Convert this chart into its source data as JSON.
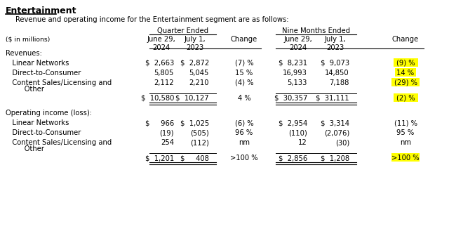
{
  "title": "Entertainment",
  "subtitle": "Revenue and operating income for the Entertainment segment are as follows:",
  "header_group1": "Quarter Ended",
  "header_group2": "Nine Months Ended",
  "col_headers": [
    "June 29,\n2024",
    "July 1,\n2023",
    "Change",
    "June 29,\n2024",
    "July 1,\n2023",
    "Change"
  ],
  "units_label": "($ in millions)",
  "sections": [
    {
      "section_label": "Revenues:",
      "rows": [
        {
          "label": "   Linear Networks",
          "q_2024": "$  2,663",
          "q_2023": "$  2,872",
          "q_change": "(7) %",
          "nm_2024": "$  8,231",
          "nm_2023": "$  9,073",
          "nm_change": "(9) %",
          "nm_change_highlight": true,
          "top_border": false,
          "double_border": false
        },
        {
          "label": "   Direct-to-Consumer",
          "q_2024": "5,805",
          "q_2023": "5,045",
          "q_change": "15 %",
          "nm_2024": "16,993",
          "nm_2023": "14,850",
          "nm_change": "14 %",
          "nm_change_highlight": true,
          "top_border": false,
          "double_border": false
        },
        {
          "label": "   Content Sales/Licensing and\n      Other",
          "q_2024": "2,112",
          "q_2023": "2,210",
          "q_change": "(4) %",
          "nm_2024": "5,133",
          "nm_2023": "7,188",
          "nm_change": "(29) %",
          "nm_change_highlight": true,
          "top_border": false,
          "double_border": false,
          "two_line": true
        },
        {
          "label": "",
          "q_2024": "$  10,580",
          "q_2023": "$  10,127",
          "q_change": "4 %",
          "nm_2024": "$  30,357",
          "nm_2023": "$  31,111",
          "nm_change": "(2) %",
          "nm_change_highlight": true,
          "top_border": true,
          "double_border": true
        }
      ]
    },
    {
      "section_label": "Operating income (loss):",
      "rows": [
        {
          "label": "   Linear Networks",
          "q_2024": "$     966",
          "q_2023": "$  1,025",
          "q_change": "(6) %",
          "nm_2024": "$  2,954",
          "nm_2023": "$  3,314",
          "nm_change": "(11) %",
          "nm_change_highlight": false,
          "top_border": false,
          "double_border": false
        },
        {
          "label": "   Direct-to-Consumer",
          "q_2024": "(19)",
          "q_2023": "(505)",
          "q_change": "96 %",
          "nm_2024": "(110)",
          "nm_2023": "(2,076)",
          "nm_change": "95 %",
          "nm_change_highlight": false,
          "top_border": false,
          "double_border": false
        },
        {
          "label": "   Content Sales/Licensing and\n      Other",
          "q_2024": "254",
          "q_2023": "(112)",
          "q_change": "nm",
          "nm_2024": "12",
          "nm_2023": "(30)",
          "nm_change": "nm",
          "nm_change_highlight": false,
          "top_border": false,
          "double_border": false,
          "two_line": true
        },
        {
          "label": "",
          "q_2024": "$  1,201",
          "q_2023": "$     408",
          "q_change": ">100 %",
          "nm_2024": "$  2,856",
          "nm_2023": "$  1,208",
          "nm_change": ">100 %",
          "nm_change_highlight": true,
          "top_border": true,
          "double_border": true
        }
      ]
    }
  ],
  "highlight_color": "#FFFF00",
  "bg_color": "#FFFFFF",
  "text_color": "#000000",
  "font_size": 7.2,
  "title_font_size": 9.0
}
